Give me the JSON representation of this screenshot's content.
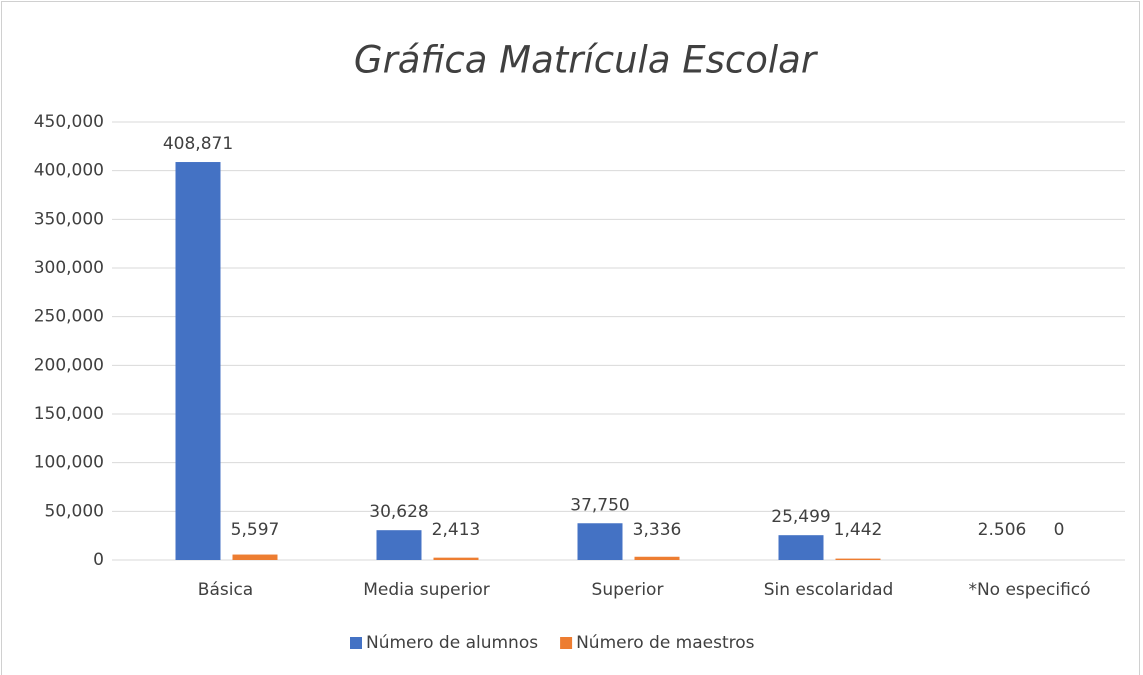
{
  "chart_data": {
    "type": "bar",
    "title": "Gráfica Matrícula Escolar",
    "categories": [
      "Básica",
      "Media superior",
      "Superior",
      "Sin escolaridad",
      "*No especificó"
    ],
    "series": [
      {
        "name": "Número de alumnos",
        "color": "#4472c4",
        "values": [
          408871,
          30628,
          37750,
          25499,
          2.506
        ],
        "value_labels": [
          "408,871",
          "30,628",
          "37,750",
          "25,499",
          "2.506"
        ]
      },
      {
        "name": "Número de maestros",
        "color": "#ed7d31",
        "values": [
          5597,
          2413,
          3336,
          1442,
          0
        ],
        "value_labels": [
          "5,597",
          "2,413",
          "3,336",
          "1,442",
          "0"
        ]
      }
    ],
    "ylim": [
      0,
      450000
    ],
    "yticks": [
      0,
      {
        "value": 50000,
        "label": "50,000"
      },
      {
        "value": 100000,
        "label": "100,000"
      },
      {
        "value": 150000,
        "label": "150,000"
      },
      {
        "value": 200000,
        "label": "200,000"
      },
      {
        "value": 250000,
        "label": "250,000"
      },
      {
        "value": 300000,
        "label": "300,000"
      },
      {
        "value": 350000,
        "label": "350,000"
      },
      {
        "value": 400000,
        "label": "400,000"
      },
      {
        "value": 450000,
        "label": "450,000"
      }
    ],
    "grid": true,
    "legend": "bottom"
  }
}
